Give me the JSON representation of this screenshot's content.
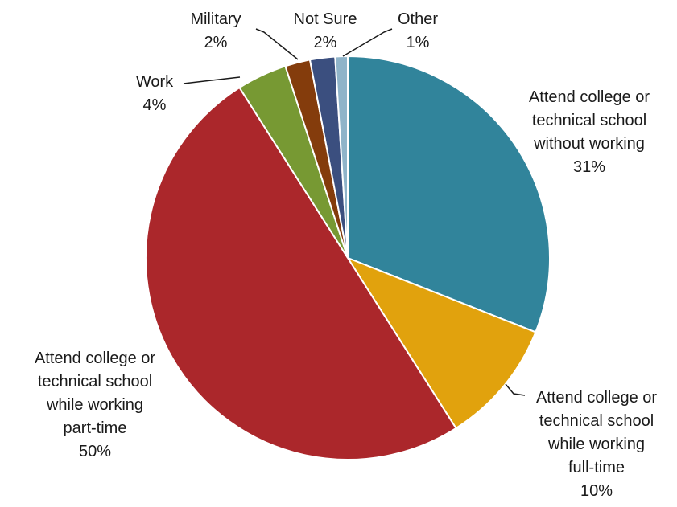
{
  "chart_data": {
    "type": "pie",
    "title": "",
    "slices": [
      {
        "lines": [
          "Attend college or",
          "technical school",
          "without working"
        ],
        "pct_label": "31%",
        "value": 31,
        "color": "#31849b"
      },
      {
        "lines": [
          "Attend college or",
          "technical school",
          "while working",
          "full-time"
        ],
        "pct_label": "10%",
        "value": 10,
        "color": "#e1a20d"
      },
      {
        "lines": [
          "Attend college or",
          "technical school",
          "while working",
          "part-time"
        ],
        "pct_label": "50%",
        "value": 50,
        "color": "#ab272b"
      },
      {
        "lines": [
          "Work"
        ],
        "pct_label": "4%",
        "value": 4,
        "color": "#779933"
      },
      {
        "lines": [
          "Military"
        ],
        "pct_label": "2%",
        "value": 2,
        "color": "#843c0c"
      },
      {
        "lines": [
          "Not Sure"
        ],
        "pct_label": "2%",
        "value": 2,
        "color": "#3b4f7f"
      },
      {
        "lines": [
          "Other"
        ],
        "pct_label": "1%",
        "value": 1,
        "color": "#8fb4c9"
      }
    ]
  }
}
